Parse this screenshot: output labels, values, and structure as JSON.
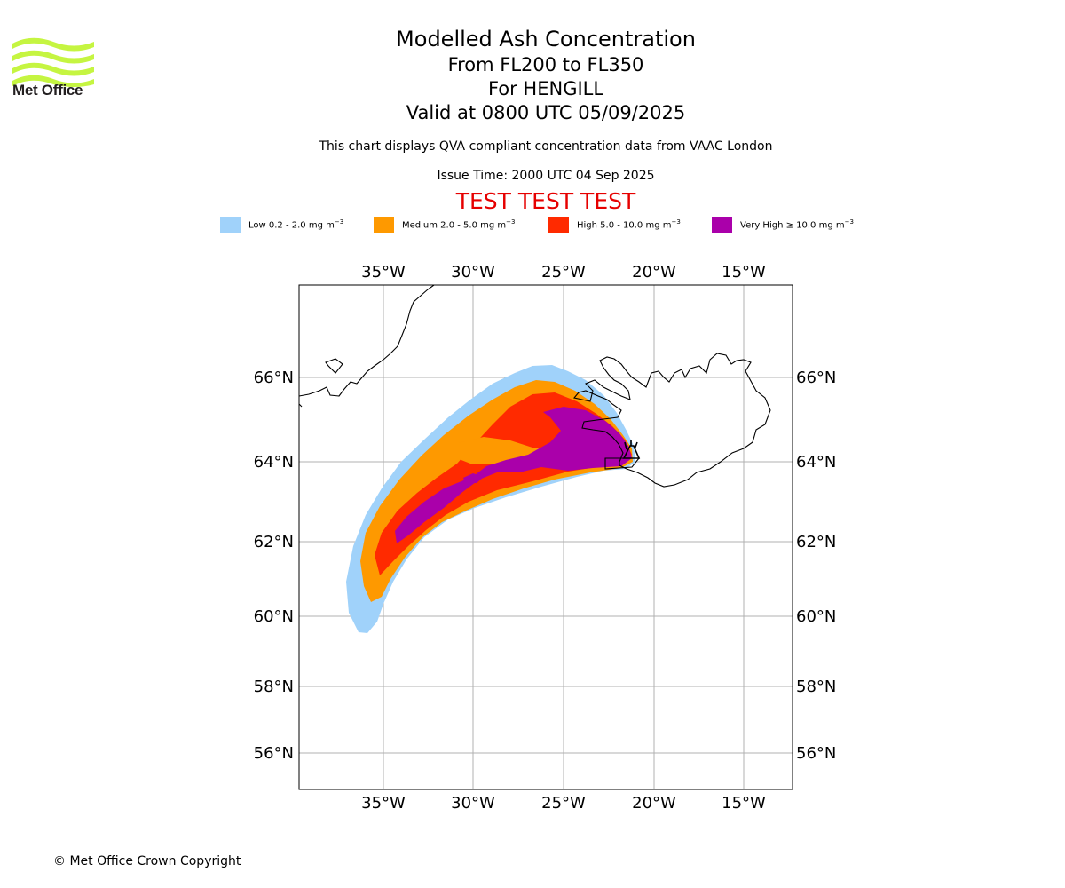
{
  "logo": {
    "text": "Met Office",
    "color": "#c5f541"
  },
  "title": {
    "line1": "Modelled Ash Concentration",
    "line2": "From FL200 to FL350",
    "line3": "For HENGILL",
    "line4": "Valid at 0800 UTC 05/09/2025"
  },
  "subtitle": "This chart displays QVA compliant concentration data from VAAC London",
  "issue_time": "Issue Time: 2000 UTC 04 Sep 2025",
  "test_banner": "TEST TEST TEST",
  "legend": [
    {
      "label": "Low 0.2 - 2.0 mg m",
      "color": "#a0d2fa"
    },
    {
      "label": "Medium 2.0 - 5.0 mg m",
      "color": "#fe9900"
    },
    {
      "label": "High 5.0 - 10.0 mg m",
      "color": "#ff2a00"
    },
    {
      "label": "Very High ≥ 10.0 mg m",
      "color": "#aa00aa"
    }
  ],
  "map": {
    "lon_labels": [
      "35°W",
      "30°W",
      "25°W",
      "20°W",
      "15°W"
    ],
    "lat_labels": [
      "66°N",
      "64°N",
      "62°N",
      "60°N",
      "58°N",
      "56°N"
    ],
    "volcano": "HENGILL",
    "volcano_symbol": "volcano-icon"
  },
  "copyright": "© Met Office Crown Copyright"
}
